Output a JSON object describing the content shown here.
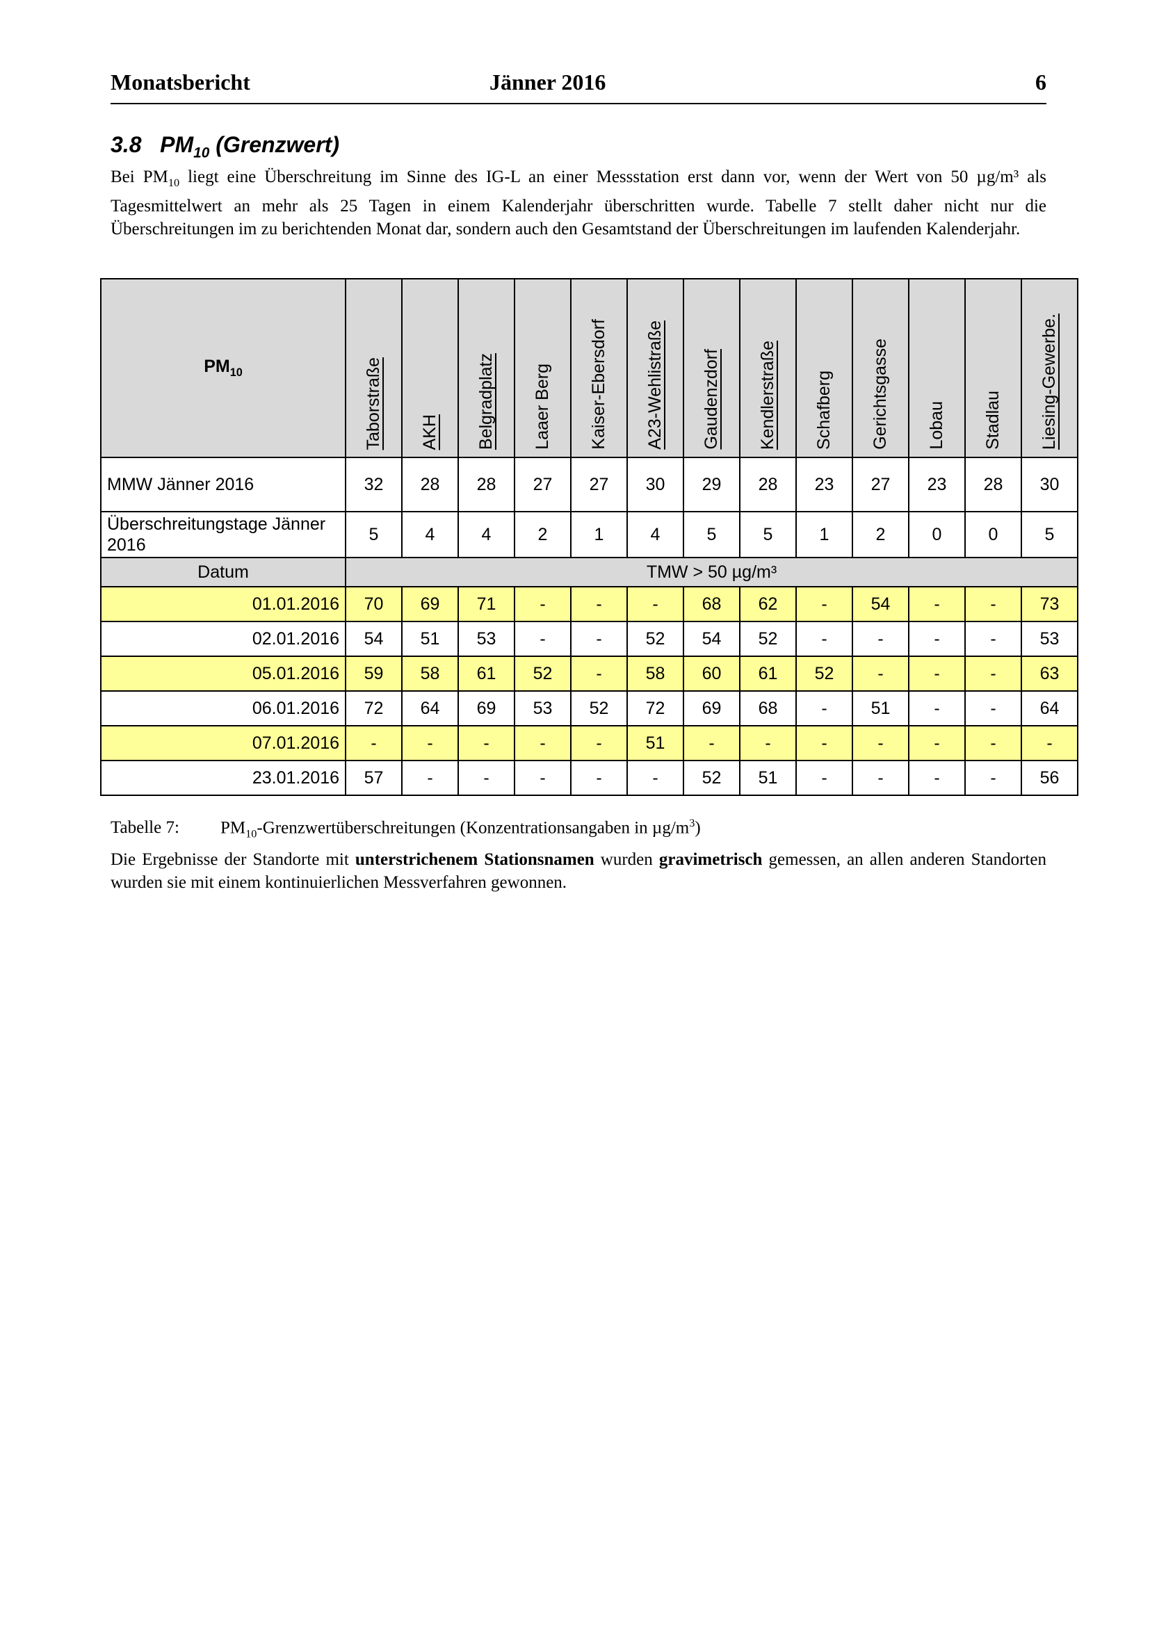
{
  "header": {
    "left": "Monatsbericht",
    "center": "Jänner 2016",
    "page": "6"
  },
  "section": {
    "number": "3.8",
    "title_main": "PM",
    "title_sub": "10",
    "title_rest": "(Grenzwert)"
  },
  "intro": [
    "Bei PM",
    "10",
    " liegt eine Überschreitung im Sinne des IG-L an einer Messstation erst dann vor, wenn der Wert von 50 µg/m³ als Tagesmittelwert an mehr als 25 Tagen in einem Kalenderjahr überschritten wurde. Tabelle 7 stellt daher nicht nur die Überschreitungen im zu berichtenden Monat dar, sondern auch den Gesamtstand der Überschreitungen im laufenden Kalenderjahr."
  ],
  "table": {
    "corner_main": "PM",
    "corner_sub": "10",
    "stations": [
      {
        "name": "Taborstraße",
        "underlined": true
      },
      {
        "name": "AKH",
        "underlined": true
      },
      {
        "name": "Belgradplatz",
        "underlined": true
      },
      {
        "name": "Laaer Berg",
        "underlined": false
      },
      {
        "name": "Kaiser-Ebersdorf",
        "underlined": false
      },
      {
        "name": "A23-Wehlistraße",
        "underlined": true
      },
      {
        "name": "Gaudenzdorf",
        "underlined": true
      },
      {
        "name": "Kendlerstraße",
        "underlined": true
      },
      {
        "name": "Schafberg",
        "underlined": false
      },
      {
        "name": "Gerichtsgasse",
        "underlined": false
      },
      {
        "name": "Lobau",
        "underlined": false
      },
      {
        "name": "Stadlau",
        "underlined": false
      },
      {
        "name": "Liesing-Gewerbe.",
        "underlined": true
      }
    ],
    "summary": [
      {
        "label": "MMW Jänner 2016",
        "values": [
          32,
          28,
          28,
          27,
          27,
          30,
          29,
          28,
          23,
          27,
          23,
          28,
          30
        ]
      },
      {
        "label": "Überschreitungstage Jänner 2016",
        "values": [
          5,
          4,
          4,
          2,
          1,
          4,
          5,
          5,
          1,
          2,
          0,
          0,
          5
        ]
      }
    ],
    "date_label": "Datum",
    "value_label": "TMW > 50 µg/m³",
    "highlight_color": "#ffff99",
    "rows": [
      {
        "date": "01.01.2016",
        "highlight": true,
        "values": [
          70,
          69,
          71,
          "-",
          "-",
          "-",
          68,
          62,
          "-",
          54,
          "-",
          "-",
          73
        ]
      },
      {
        "date": "02.01.2016",
        "highlight": false,
        "values": [
          54,
          51,
          53,
          "-",
          "-",
          52,
          54,
          52,
          "-",
          "-",
          "-",
          "-",
          53
        ]
      },
      {
        "date": "05.01.2016",
        "highlight": true,
        "values": [
          59,
          58,
          61,
          52,
          "-",
          58,
          60,
          61,
          52,
          "-",
          "-",
          "-",
          63
        ]
      },
      {
        "date": "06.01.2016",
        "highlight": false,
        "values": [
          72,
          64,
          69,
          53,
          52,
          72,
          69,
          68,
          "-",
          51,
          "-",
          "-",
          64
        ]
      },
      {
        "date": "07.01.2016",
        "highlight": true,
        "values": [
          "-",
          "-",
          "-",
          "-",
          "-",
          51,
          "-",
          "-",
          "-",
          "-",
          "-",
          "-",
          "-"
        ]
      },
      {
        "date": "23.01.2016",
        "highlight": false,
        "values": [
          57,
          "-",
          "-",
          "-",
          "-",
          "-",
          52,
          51,
          "-",
          "-",
          "-",
          "-",
          56
        ]
      }
    ]
  },
  "caption": {
    "label": "Tabelle 7:",
    "parts": [
      "PM",
      "10",
      "-Grenzwertüberschreitungen (Konzentrationsangaben in µg/m",
      "3",
      ")"
    ]
  },
  "note": [
    "Die Ergebnisse der Standorte mit ",
    "unterstrichenem Stationsnamen",
    " wurden ",
    "gravimetrisch",
    " gemessen, an allen anderen Standorten wurden sie mit einem kontinuierlichen Messverfahren gewonnen."
  ]
}
